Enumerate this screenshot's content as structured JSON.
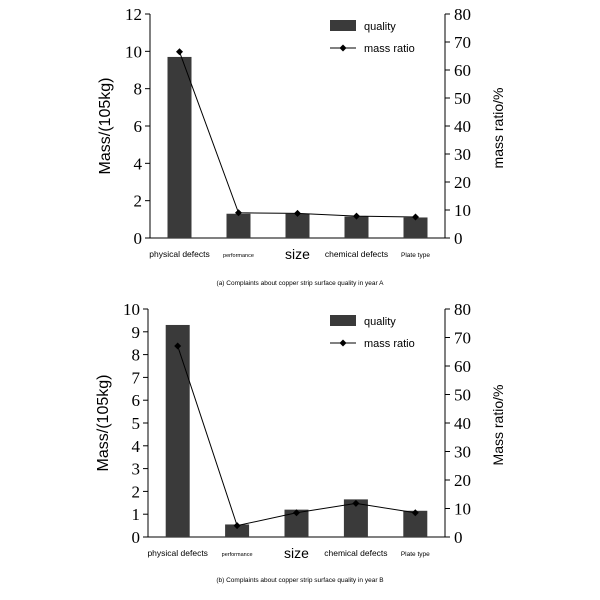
{
  "colors": {
    "bar": "#3a3a3a",
    "line": "#000000",
    "axis": "#000000",
    "background": "#ffffff"
  },
  "chart_data": [
    {
      "type": "bar+line",
      "caption": "(a) Complaints about copper strip surface quality in year A",
      "categories": [
        "physical defects",
        "performance",
        "size",
        "chemical defects",
        "Plate type"
      ],
      "ylabel": "Mass/(105kg)",
      "ylabel2": "mass ratio/%",
      "ylim": [
        0,
        12
      ],
      "ylim2": [
        0,
        80
      ],
      "yticks": [
        "0",
        "2",
        "4",
        "6",
        "8",
        "10",
        "12"
      ],
      "yticks2": [
        "0",
        "10",
        "20",
        "30",
        "40",
        "50",
        "60",
        "70",
        "80"
      ],
      "legend": {
        "bar": "quality",
        "line": "mass ratio"
      },
      "series": [
        {
          "name": "quality",
          "kind": "bar",
          "axis": "left",
          "values": [
            9.7,
            1.3,
            1.3,
            1.15,
            1.1
          ]
        },
        {
          "name": "mass ratio",
          "kind": "line",
          "axis": "right",
          "values": [
            66.5,
            9.0,
            8.8,
            7.8,
            7.5
          ]
        }
      ]
    },
    {
      "type": "bar+line",
      "caption": "(b) Complaints about copper strip surface quality in year B",
      "categories": [
        "physical defects",
        "performance",
        "size",
        "chemical defects",
        "Plate type"
      ],
      "ylabel": "Mass/(105kg)",
      "ylabel2": "Mass ratio/%",
      "ylim": [
        0,
        10
      ],
      "ylim2": [
        0,
        80
      ],
      "yticks": [
        "0",
        "1",
        "2",
        "3",
        "4",
        "5",
        "6",
        "7",
        "8",
        "9",
        "10"
      ],
      "yticks2": [
        "0",
        "10",
        "20",
        "30",
        "40",
        "50",
        "60",
        "70",
        "80"
      ],
      "legend": {
        "bar": "quality",
        "line": "mass ratio"
      },
      "series": [
        {
          "name": "quality",
          "kind": "bar",
          "axis": "left",
          "values": [
            9.3,
            0.55,
            1.2,
            1.65,
            1.15
          ]
        },
        {
          "name": "mass ratio",
          "kind": "line",
          "axis": "right",
          "values": [
            67.0,
            4.0,
            8.5,
            11.8,
            8.5
          ]
        }
      ]
    }
  ]
}
